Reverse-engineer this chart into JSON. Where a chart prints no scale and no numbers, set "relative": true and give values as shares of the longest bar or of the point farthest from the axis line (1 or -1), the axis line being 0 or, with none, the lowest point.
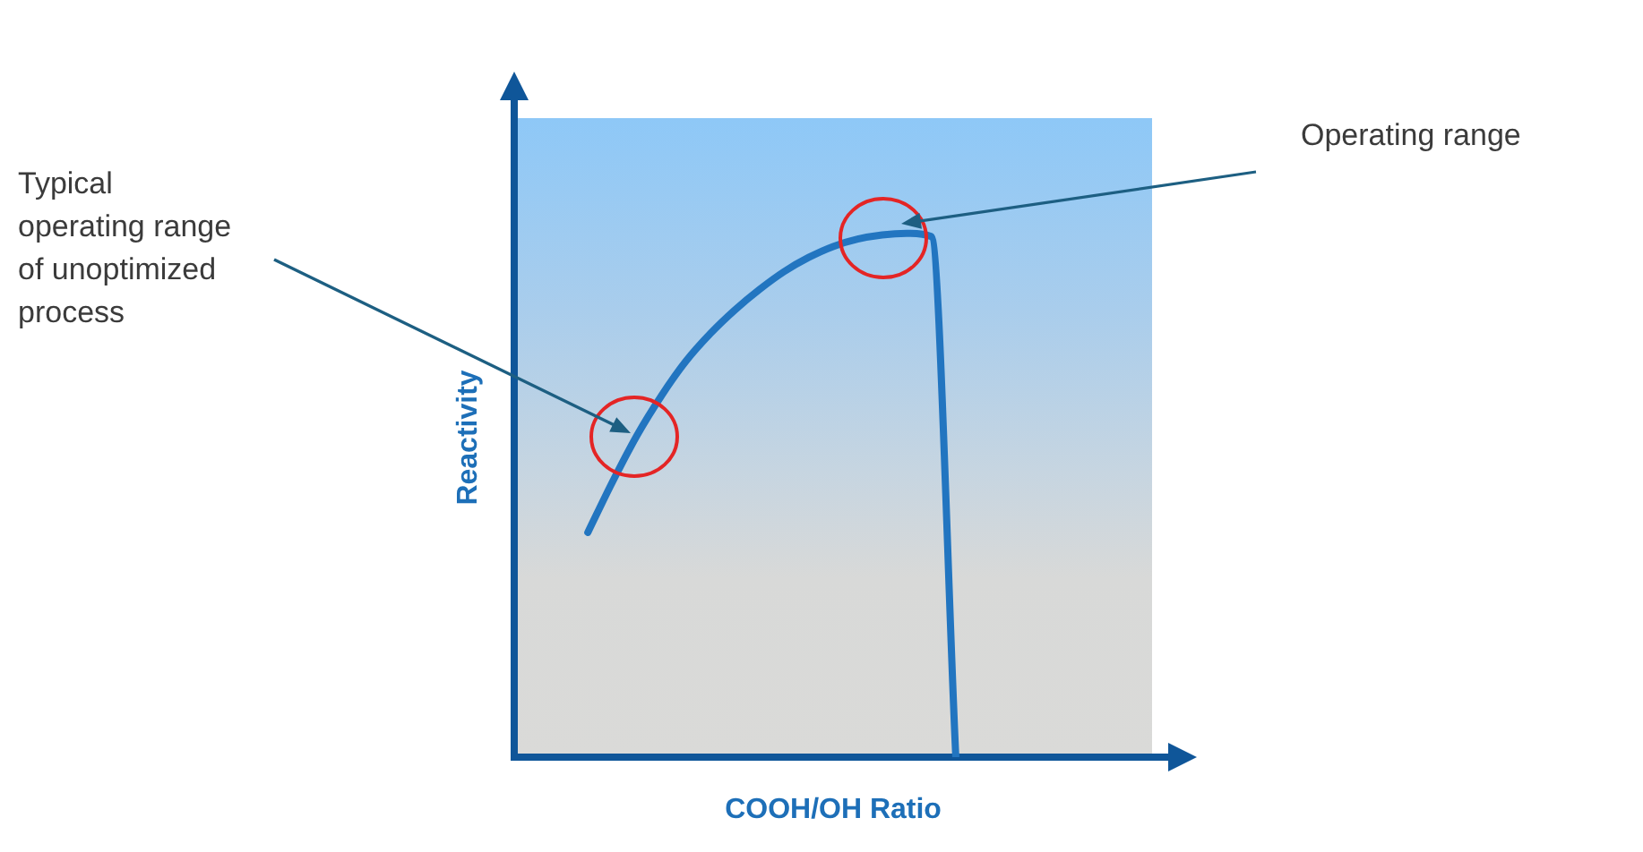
{
  "chart_data": {
    "type": "line",
    "xlabel": "COOH/OH Ratio",
    "ylabel": "Reactivity",
    "categories": [
      null,
      null,
      null,
      null,
      null,
      null,
      null,
      null,
      null,
      null,
      null,
      null,
      null,
      null,
      null,
      null,
      null,
      null,
      null,
      null,
      null,
      null,
      null,
      null,
      null,
      null,
      null
    ],
    "values": [
      null,
      null,
      null,
      0.429,
      0.525,
      0.614,
      0.69,
      0.756,
      0.809,
      0.854,
      0.893,
      0.927,
      0.954,
      0.975,
      0.989,
      0.997,
      1,
      0.994,
      0,
      null,
      null,
      null,
      null,
      null,
      null,
      null,
      null
    ],
    "color": "#2275c0",
    "relative": true,
    "annotations": [
      "Typical operating range of unoptimized process",
      "Operating range"
    ]
  }
}
